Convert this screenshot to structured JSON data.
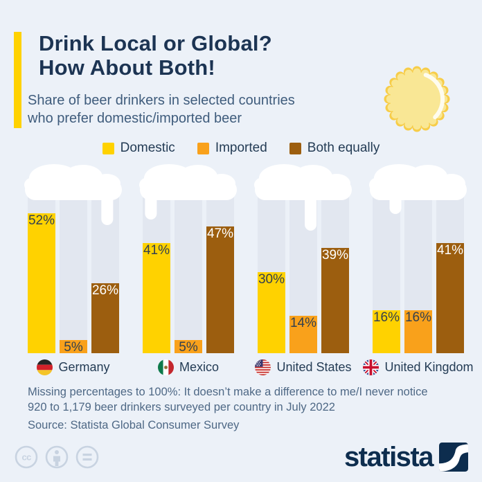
{
  "header": {
    "title_line1": "Drink Local or Global?",
    "title_line2": "How About Both!",
    "subtitle_line1": "Share of beer drinkers in selected countries",
    "subtitle_line2": "who prefer domestic/imported beer",
    "decoration": "bottle-cap-icon"
  },
  "legend": [
    {
      "label": "Domestic",
      "color": "#FFD200"
    },
    {
      "label": "Imported",
      "color": "#F9A11B"
    },
    {
      "label": "Both equally",
      "color": "#9C5E0F"
    }
  ],
  "chart_data": {
    "type": "bar",
    "unit": "%",
    "title": "Share of beer drinkers in selected countries who prefer domestic/imported beer",
    "categories": [
      "Germany",
      "Mexico",
      "United States",
      "United Kingdom"
    ],
    "category_flags": [
      "germany-flag",
      "mexico-flag",
      "united-states-flag",
      "united-kingdom-flag"
    ],
    "series": [
      {
        "name": "Domestic",
        "color": "#FFD200",
        "values": [
          52,
          41,
          30,
          16
        ]
      },
      {
        "name": "Imported",
        "color": "#F9A11B",
        "values": [
          5,
          5,
          14,
          16
        ]
      },
      {
        "name": "Both equally",
        "color": "#9C5E0F",
        "values": [
          26,
          47,
          39,
          41
        ]
      }
    ],
    "value_labels": true,
    "ylim": [
      0,
      62
    ],
    "grid": false,
    "legend_position": "top"
  },
  "footnotes": [
    "Missing percentages to 100%: It doesn’t make a difference to me/I never notice",
    "920 to 1,179 beer drinkers surveyed per country in July 2022"
  ],
  "source": "Source: Statista Global Consumer Survey",
  "footer": {
    "license_icons": [
      "creative-commons-icon",
      "attribution-icon",
      "no-derivatives-icon"
    ],
    "logo_text": "statista"
  },
  "colors": {
    "background": "#ECF1F8",
    "accent": "#FFD200",
    "title": "#1C3453",
    "subtitle": "#3F5C7C",
    "glass_column": "#E2E7F0",
    "foam": "#FFFFFF",
    "brand_navy": "#0D2D4E"
  }
}
